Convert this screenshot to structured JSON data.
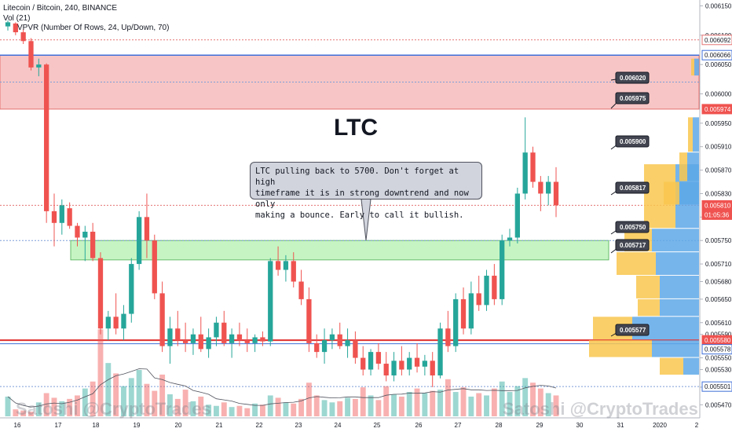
{
  "header": {
    "title": "Litecoin / Bitcoin, 240, BINANCE",
    "indicator_vol": "Vol (21)",
    "indicator_vpvr": "VPVR (Number Of Rows, 24, Up/Down, 70)"
  },
  "annotations": {
    "big_label": "LTC",
    "callout_text": "LTC pulling back to 5700. Don't forget at high\ntimeframe it is in strong downtrend and now only\nmaking a bounce. Early to call it bullish.",
    "watermark_left": "Satoshi @CryptoTrades",
    "watermark_right": "Satoshi @CryptoTrades"
  },
  "colors": {
    "up": "#26a69a",
    "down": "#ef5350",
    "resistance_zone": "#f7c5c5",
    "support_zone": "#c6f5c3",
    "support_line": "#e03131",
    "vpvr_up": "#f9c74f",
    "vpvr_down": "#5ea8e8",
    "price_tag": "#ef5350"
  },
  "chart_data": {
    "type": "candlestick",
    "ylim": [
      0.005445,
      0.00616
    ],
    "x_ticks": [
      "16",
      "17",
      "18",
      "19",
      "20",
      "21",
      "22",
      "23",
      "24",
      "25",
      "26",
      "27",
      "28",
      "29",
      "30",
      "31",
      "2020",
      "2"
    ],
    "y_ticks": [
      "0.006150",
      "0.006100",
      "0.006050",
      "0.006000",
      "0.005950",
      "0.005910",
      "0.005870",
      "0.005830",
      "0.005790",
      "0.005750",
      "0.005710",
      "0.005680",
      "0.005650",
      "0.005610",
      "0.005590",
      "0.005550",
      "0.005530",
      "0.005500",
      "0.005470"
    ],
    "price_tags": [
      {
        "value": "0.006092",
        "style": "red-outline"
      },
      {
        "value": "0.006066",
        "style": "blue-outline"
      },
      {
        "value": "0.005974",
        "style": "red"
      },
      {
        "value": "0.005810",
        "style": "red"
      },
      {
        "value": "01:05:36",
        "style": "red"
      },
      {
        "value": "0.005580",
        "style": "red"
      },
      {
        "value": "0.005578",
        "style": "blue-outline"
      },
      {
        "value": "0.005501",
        "style": "blue-outline"
      }
    ],
    "level_labels": [
      "0.006020",
      "0.005975",
      "0.005900",
      "0.005817",
      "0.005750",
      "0.005717",
      "0.005577"
    ],
    "zones": [
      {
        "name": "resistance",
        "from": 0.005974,
        "to": 0.006066
      },
      {
        "name": "support",
        "from": 0.005717,
        "to": 0.00575
      }
    ],
    "candles": [
      [
        0.006115,
        0.006125,
        0.006108,
        0.006122
      ],
      [
        0.00612,
        0.006122,
        0.0061,
        0.006105
      ],
      [
        0.006105,
        0.00611,
        0.006085,
        0.00609
      ],
      [
        0.00609,
        0.006095,
        0.00604,
        0.006045
      ],
      [
        0.006045,
        0.00606,
        0.00603,
        0.00605
      ],
      [
        0.00605,
        0.006052,
        0.00578,
        0.0058
      ],
      [
        0.0058,
        0.00583,
        0.00574,
        0.00578
      ],
      [
        0.00578,
        0.00582,
        0.00576,
        0.00581
      ],
      [
        0.005805,
        0.005815,
        0.00577,
        0.005775
      ],
      [
        0.005775,
        0.00578,
        0.00574,
        0.005755
      ],
      [
        0.005755,
        0.005775,
        0.005715,
        0.005765
      ],
      [
        0.005765,
        0.00578,
        0.005715,
        0.00572
      ],
      [
        0.00572,
        0.00573,
        0.00559,
        0.0056
      ],
      [
        0.0056,
        0.00563,
        0.00558,
        0.00562
      ],
      [
        0.00562,
        0.00566,
        0.00559,
        0.0056
      ],
      [
        0.0056,
        0.00564,
        0.00558,
        0.005625
      ],
      [
        0.005625,
        0.00572,
        0.00561,
        0.00571
      ],
      [
        0.00571,
        0.0058,
        0.0057,
        0.00579
      ],
      [
        0.00579,
        0.00583,
        0.00572,
        0.00575
      ],
      [
        0.00575,
        0.00576,
        0.00565,
        0.00566
      ],
      [
        0.00566,
        0.00568,
        0.00556,
        0.00557
      ],
      [
        0.00557,
        0.00562,
        0.00554,
        0.0056
      ],
      [
        0.0056,
        0.00563,
        0.00557,
        0.00558
      ],
      [
        0.00558,
        0.00561,
        0.00556,
        0.005575
      ],
      [
        0.005575,
        0.0056,
        0.005555,
        0.00559
      ],
      [
        0.00559,
        0.00562,
        0.00556,
        0.005565
      ],
      [
        0.005565,
        0.0056,
        0.00555,
        0.005585
      ],
      [
        0.005585,
        0.00562,
        0.00557,
        0.00561
      ],
      [
        0.00561,
        0.00563,
        0.00557,
        0.005575
      ],
      [
        0.005575,
        0.0056,
        0.00555,
        0.00559
      ],
      [
        0.00559,
        0.00561,
        0.00557,
        0.00558
      ],
      [
        0.00558,
        0.0056,
        0.00556,
        0.005575
      ],
      [
        0.005575,
        0.00559,
        0.00556,
        0.005585
      ],
      [
        0.005585,
        0.005595,
        0.00557,
        0.005578
      ],
      [
        0.005578,
        0.00572,
        0.00557,
        0.005715
      ],
      [
        0.005715,
        0.00574,
        0.00569,
        0.0057
      ],
      [
        0.0057,
        0.005725,
        0.00568,
        0.005715
      ],
      [
        0.005715,
        0.00573,
        0.00567,
        0.00568
      ],
      [
        0.00568,
        0.0057,
        0.00564,
        0.00565
      ],
      [
        0.00565,
        0.00567,
        0.00556,
        0.005575
      ],
      [
        0.005575,
        0.00559,
        0.00555,
        0.00556
      ],
      [
        0.00556,
        0.0056,
        0.00554,
        0.00558
      ],
      [
        0.00558,
        0.0056,
        0.005565,
        0.00559
      ],
      [
        0.00559,
        0.00561,
        0.005565,
        0.00557
      ],
      [
        0.00557,
        0.0056,
        0.00555,
        0.00558
      ],
      [
        0.00558,
        0.005595,
        0.00554,
        0.00555
      ],
      [
        0.00555,
        0.00557,
        0.00552,
        0.00553
      ],
      [
        0.00553,
        0.005565,
        0.00552,
        0.00556
      ],
      [
        0.00556,
        0.005575,
        0.00553,
        0.00554
      ],
      [
        0.00554,
        0.00556,
        0.00551,
        0.00552
      ],
      [
        0.00552,
        0.00556,
        0.00551,
        0.005545
      ],
      [
        0.005545,
        0.00557,
        0.00552,
        0.00553
      ],
      [
        0.00553,
        0.00556,
        0.00552,
        0.00555
      ],
      [
        0.00555,
        0.005575,
        0.005525,
        0.005535
      ],
      [
        0.005535,
        0.005555,
        0.00552,
        0.005545
      ],
      [
        0.005545,
        0.00556,
        0.0055,
        0.00552
      ],
      [
        0.00552,
        0.00561,
        0.005515,
        0.0056
      ],
      [
        0.0056,
        0.00563,
        0.00556,
        0.00557
      ],
      [
        0.00557,
        0.00566,
        0.00556,
        0.00565
      ],
      [
        0.00565,
        0.00567,
        0.00559,
        0.0056
      ],
      [
        0.0056,
        0.00568,
        0.00559,
        0.00566
      ],
      [
        0.00566,
        0.00569,
        0.00563,
        0.00564
      ],
      [
        0.00564,
        0.0057,
        0.00563,
        0.00569
      ],
      [
        0.00569,
        0.00571,
        0.00564,
        0.00565
      ],
      [
        0.00565,
        0.00576,
        0.00564,
        0.00575
      ],
      [
        0.00575,
        0.00577,
        0.00574,
        0.005755
      ],
      [
        0.005755,
        0.00584,
        0.005745,
        0.00583
      ],
      [
        0.00583,
        0.00596,
        0.00582,
        0.0059
      ],
      [
        0.0059,
        0.00591,
        0.00584,
        0.00585
      ],
      [
        0.00585,
        0.00586,
        0.0058,
        0.00583
      ],
      [
        0.00583,
        0.00586,
        0.00581,
        0.00585
      ],
      [
        0.00585,
        0.005875,
        0.00579,
        0.00581
      ]
    ],
    "volume": [
      34,
      12,
      10,
      8,
      24,
      40,
      32,
      26,
      30,
      36,
      48,
      60,
      150,
      92,
      74,
      52,
      66,
      80,
      56,
      44,
      72,
      38,
      30,
      46,
      26,
      34,
      20,
      18,
      24,
      16,
      18,
      14,
      22,
      20,
      36,
      32,
      24,
      22,
      30,
      58,
      36,
      28,
      24,
      26,
      32,
      30,
      50,
      36,
      28,
      52,
      38,
      34,
      42,
      48,
      40,
      44,
      46,
      64,
      42,
      50,
      34,
      40,
      36,
      48,
      60,
      42,
      52,
      66,
      58,
      48,
      40,
      36
    ]
  }
}
